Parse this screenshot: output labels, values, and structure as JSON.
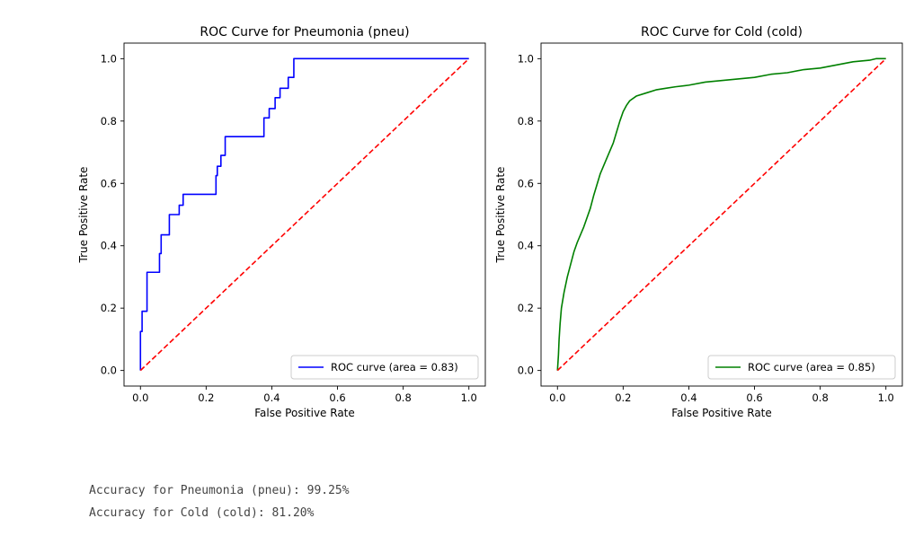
{
  "chart_data": [
    {
      "type": "line",
      "title": "ROC Curve for Pneumonia (pneu)",
      "xlabel": "False Positive Rate",
      "ylabel": "True Positive Rate",
      "xlim": [
        -0.05,
        1.05
      ],
      "ylim": [
        -0.05,
        1.05
      ],
      "xticks": [
        "0.0",
        "0.2",
        "0.4",
        "0.6",
        "0.8",
        "1.0"
      ],
      "yticks": [
        "0.0",
        "0.2",
        "0.4",
        "0.6",
        "0.8",
        "1.0"
      ],
      "grid": false,
      "legend": "lower-right",
      "series": [
        {
          "name": "ROC curve (area = 0.83)",
          "color": "#0000ff",
          "style": "solid",
          "x": [
            0,
            0,
            0.005,
            0.005,
            0.02,
            0.02,
            0.03,
            0.03,
            0.058,
            0.058,
            0.063,
            0.063,
            0.088,
            0.088,
            0.118,
            0.118,
            0.13,
            0.13,
            0.23,
            0.23,
            0.234,
            0.234,
            0.245,
            0.245,
            0.258,
            0.258,
            0.376,
            0.376,
            0.392,
            0.392,
            0.41,
            0.41,
            0.425,
            0.425,
            0.45,
            0.45,
            0.467,
            0.467,
            1.0
          ],
          "y": [
            0,
            0.125,
            0.125,
            0.19,
            0.19,
            0.315,
            0.315,
            0.315,
            0.315,
            0.375,
            0.375,
            0.435,
            0.435,
            0.5,
            0.5,
            0.53,
            0.53,
            0.565,
            0.565,
            0.625,
            0.625,
            0.655,
            0.655,
            0.69,
            0.69,
            0.75,
            0.75,
            0.81,
            0.81,
            0.84,
            0.84,
            0.875,
            0.875,
            0.905,
            0.905,
            0.94,
            0.94,
            1.0,
            1.0
          ]
        },
        {
          "name": "",
          "color": "#ff0000",
          "style": "dashed",
          "x": [
            0,
            1
          ],
          "y": [
            0,
            1
          ]
        }
      ]
    },
    {
      "type": "line",
      "title": "ROC Curve for Cold (cold)",
      "xlabel": "False Positive Rate",
      "ylabel": "True Positive Rate",
      "xlim": [
        -0.05,
        1.05
      ],
      "ylim": [
        -0.05,
        1.05
      ],
      "xticks": [
        "0.0",
        "0.2",
        "0.4",
        "0.6",
        "0.8",
        "1.0"
      ],
      "yticks": [
        "0.0",
        "0.2",
        "0.4",
        "0.6",
        "0.8",
        "1.0"
      ],
      "grid": false,
      "legend": "lower-right",
      "series": [
        {
          "name": "ROC curve (area = 0.85)",
          "color": "#008000",
          "style": "solid",
          "x": [
            0,
            0.003,
            0.005,
            0.008,
            0.012,
            0.02,
            0.03,
            0.04,
            0.05,
            0.06,
            0.08,
            0.1,
            0.11,
            0.13,
            0.15,
            0.17,
            0.19,
            0.2,
            0.21,
            0.22,
            0.24,
            0.27,
            0.3,
            0.33,
            0.36,
            0.4,
            0.45,
            0.5,
            0.55,
            0.6,
            0.65,
            0.7,
            0.75,
            0.8,
            0.85,
            0.9,
            0.95,
            0.97,
            1.0
          ],
          "y": [
            0,
            0.05,
            0.1,
            0.15,
            0.2,
            0.25,
            0.3,
            0.34,
            0.38,
            0.41,
            0.46,
            0.52,
            0.56,
            0.63,
            0.68,
            0.73,
            0.8,
            0.83,
            0.85,
            0.865,
            0.88,
            0.89,
            0.9,
            0.905,
            0.91,
            0.915,
            0.925,
            0.93,
            0.935,
            0.94,
            0.95,
            0.955,
            0.965,
            0.97,
            0.98,
            0.99,
            0.995,
            1.0,
            1.0
          ]
        },
        {
          "name": "",
          "color": "#ff0000",
          "style": "dashed",
          "x": [
            0,
            1
          ],
          "y": [
            0,
            1
          ]
        }
      ]
    }
  ],
  "console": {
    "line1": "Accuracy for Pneumonia (pneu): 99.25%",
    "line2": "Accuracy for Cold (cold): 81.20%"
  }
}
